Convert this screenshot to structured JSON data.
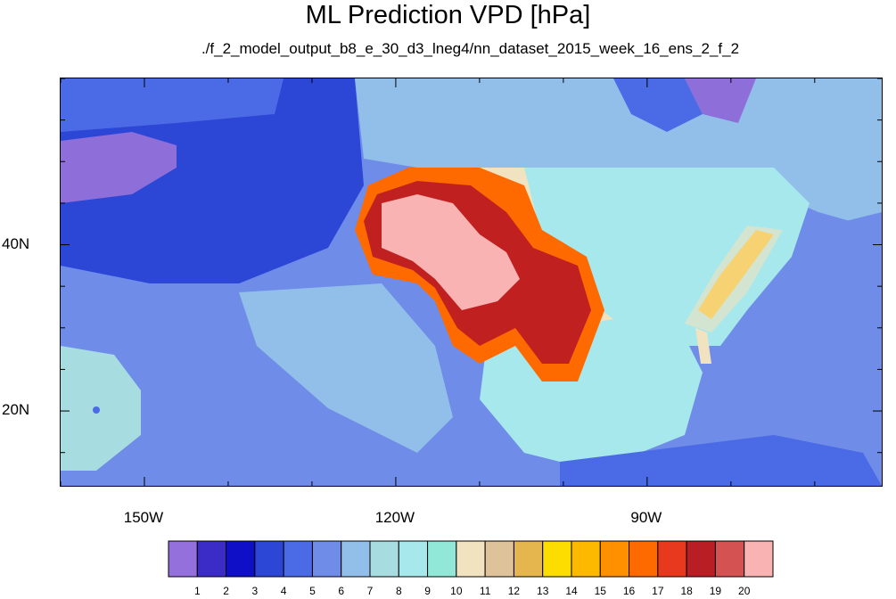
{
  "title": "ML Prediction VPD [hPa]",
  "subtitle": "./f_2_model_output_b8_e_30_d3_lneg4/nn_dataset_2015_week_16_ens_2_f_2",
  "map": {
    "projection": "cylindrical-equidistant",
    "lon_range": [
      -160,
      -62
    ],
    "lat_range": [
      11,
      60
    ],
    "lon_ticks": [
      {
        "value": -150,
        "label": "150W"
      },
      {
        "value": -120,
        "label": "120W"
      },
      {
        "value": -90,
        "label": "90W"
      }
    ],
    "lat_ticks": [
      {
        "value": 40,
        "label": "40N"
      },
      {
        "value": 20,
        "label": "20N"
      }
    ],
    "background_color": "#6E8CE8",
    "regions": [
      {
        "name": "north-pacific-dark",
        "level": 3,
        "color": "#2C46D6"
      },
      {
        "name": "pacific-purple-patch",
        "level": 1,
        "color": "#8E6ED8"
      },
      {
        "name": "canada-northeast-purple",
        "level": 1,
        "color": "#8E6ED8"
      },
      {
        "name": "tropical-pacific-light",
        "level": 7,
        "color": "#A7DCE0"
      },
      {
        "name": "gulf-of-mexico",
        "level": 8,
        "color": "#A6E8EC"
      },
      {
        "name": "eastern-us",
        "level": 8,
        "color": "#A6E8EC"
      },
      {
        "name": "great-plains-tan",
        "level": 11,
        "color": "#F2E3C0"
      },
      {
        "name": "appalachian-band",
        "level": 14,
        "color": "#FDB800"
      },
      {
        "name": "southwest-orange",
        "level": 16,
        "color": "#FF6A00"
      },
      {
        "name": "southwest-red",
        "level": 18,
        "color": "#C02020"
      },
      {
        "name": "southwest-core",
        "level": 20,
        "color": "#F9B3B3"
      },
      {
        "name": "texas-core",
        "level": 18,
        "color": "#C02020"
      }
    ]
  },
  "colorbar": {
    "levels": [
      "1",
      "2",
      "3",
      "4",
      "5",
      "6",
      "7",
      "8",
      "9",
      "10",
      "11",
      "12",
      "13",
      "14",
      "15",
      "16",
      "17",
      "18",
      "19",
      "20"
    ],
    "colors": [
      "#9370DB",
      "#3B2CC8",
      "#0F0FC8",
      "#2C46D6",
      "#4B6BE6",
      "#6E8CE8",
      "#92BFEA",
      "#A7DCE0",
      "#A6E8EC",
      "#92E8D8",
      "#F2E3C0",
      "#DEC39A",
      "#E6B64E",
      "#FDDC00",
      "#FDB800",
      "#FF9100",
      "#FF6A00",
      "#E8381E",
      "#B81E23",
      "#D45252",
      "#F9B3B3"
    ]
  }
}
